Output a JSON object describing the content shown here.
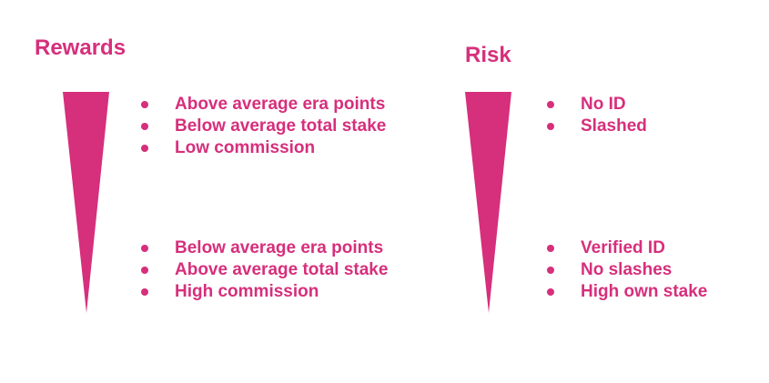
{
  "colors": {
    "accent": "#d62f7c",
    "background": "#ffffff"
  },
  "rewards": {
    "title": "Rewards",
    "top_items": [
      "Above average era points",
      "Below average total stake",
      "Low commission"
    ],
    "bottom_items": [
      "Below average era points",
      "Above average total stake",
      "High commission"
    ]
  },
  "risk": {
    "title": "Risk",
    "top_items": [
      "No ID",
      "Slashed"
    ],
    "bottom_items": [
      "Verified ID",
      "No slashes",
      "High own stake"
    ]
  }
}
